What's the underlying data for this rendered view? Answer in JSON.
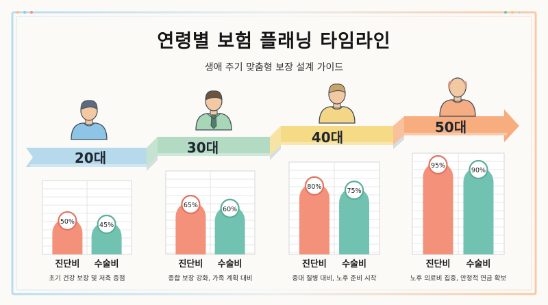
{
  "header": {
    "title": "연령별 보험 플래닝 타임라인",
    "subtitle": "생애 주기 맞춤형 보장 설계 가이드"
  },
  "colors": {
    "diagnosis_bar": "#f4917a",
    "surgery_bar": "#72c2b2",
    "band_20s": "#b7d9ec",
    "band_30s": "#b3dbc4",
    "band_40s": "#f6db87",
    "band_50s": "#f7ad7e",
    "badge_diagnosis_ring": "#e0735f",
    "badge_surgery_ring": "#5aad9b"
  },
  "chart_data": {
    "type": "bar",
    "ylim": [
      0,
      100
    ],
    "grid": true,
    "series_labels": [
      "진단비",
      "수술비"
    ],
    "groups": [
      {
        "age": "20대",
        "icon": "young-person-icon",
        "values": [
          50,
          45
        ],
        "labels": [
          "50%",
          "45%"
        ],
        "caption": "초기 건강 보장 및 저축 증점"
      },
      {
        "age": "30대",
        "icon": "office-worker-icon",
        "values": [
          65,
          60
        ],
        "labels": [
          "65%",
          "60%"
        ],
        "caption": "종합 보장 강화, 가족 계획 대비"
      },
      {
        "age": "40대",
        "icon": "middle-aged-person-icon",
        "values": [
          80,
          75
        ],
        "labels": [
          "80%",
          "75%"
        ],
        "caption": "중대 질병 대비, 노후 준비 시작"
      },
      {
        "age": "50대",
        "icon": "senior-person-icon",
        "values": [
          95,
          90
        ],
        "labels": [
          "95%",
          "90%"
        ],
        "caption": "노후 의료비 집중, 안정적 연금 확보"
      }
    ]
  }
}
